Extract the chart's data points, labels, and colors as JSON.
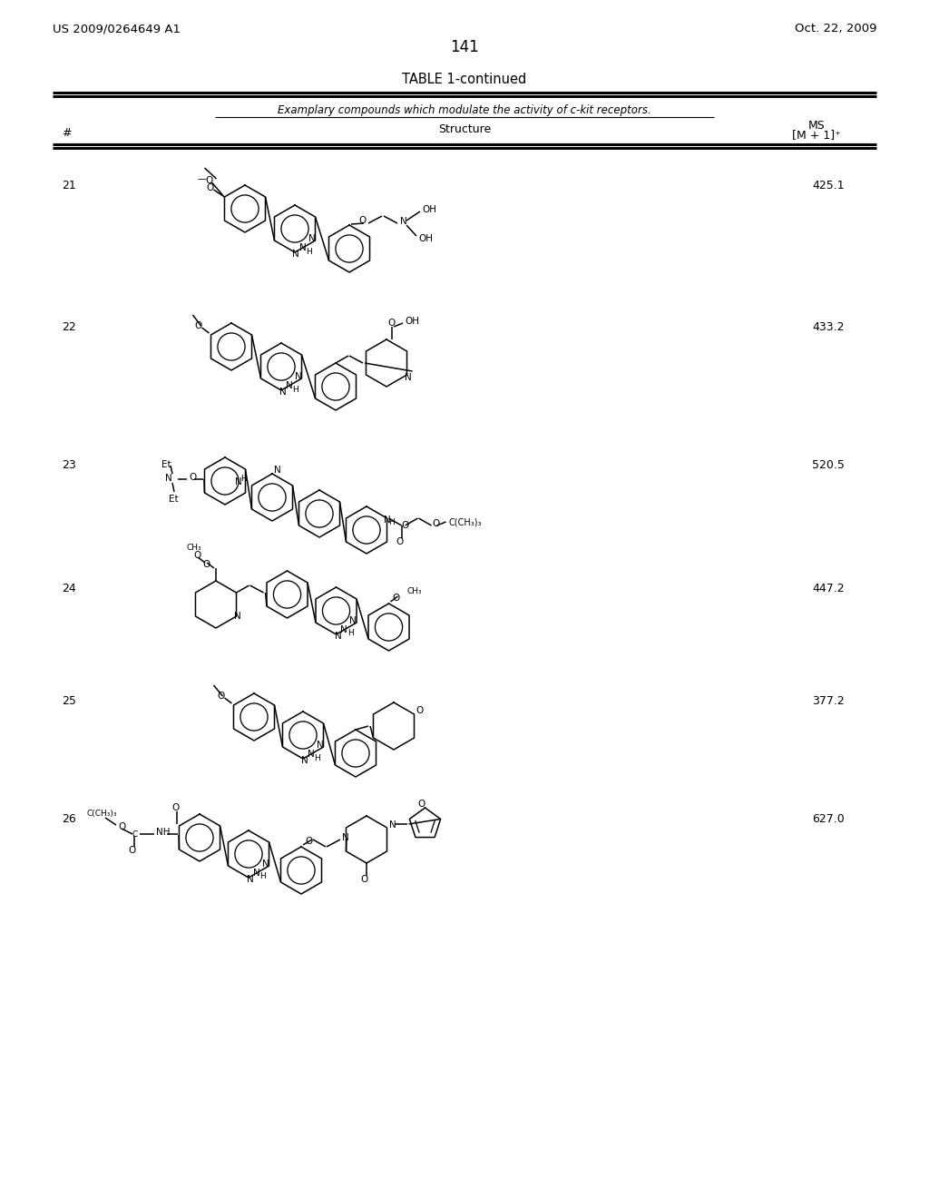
{
  "page_number": "141",
  "patent_number": "US 2009/0264649 A1",
  "patent_date": "Oct. 22, 2009",
  "table_title": "TABLE 1-continued",
  "table_subtitle": "Examplary compounds which modulate the activity of c-kit receptors.",
  "bg_color": "#ffffff",
  "compounds": [
    {
      "num": "21",
      "ms": "425.1"
    },
    {
      "num": "22",
      "ms": "433.2"
    },
    {
      "num": "23",
      "ms": "520.5"
    },
    {
      "num": "24",
      "ms": "447.2"
    },
    {
      "num": "25",
      "ms": "377.2"
    },
    {
      "num": "26",
      "ms": "627.0"
    }
  ]
}
